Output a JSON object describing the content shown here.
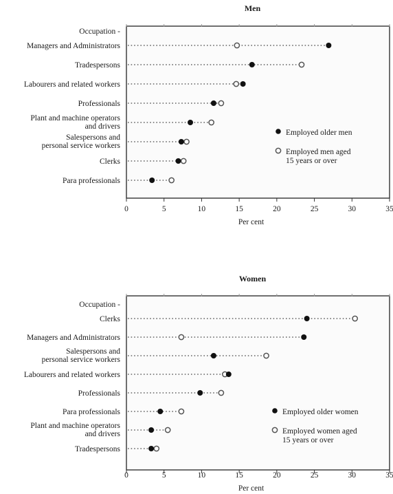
{
  "chart_data": [
    {
      "type": "scatter",
      "title": "Men",
      "xlabel": "Per cent",
      "xlim": [
        0,
        35
      ],
      "xticks": [
        0,
        5,
        10,
        15,
        20,
        25,
        30,
        35
      ],
      "header_label": "Occupation -",
      "categories": [
        "Managers and Administrators",
        "Tradespersons",
        "Labourers and related workers",
        "Professionals",
        "Plant and machine operators and drivers",
        "Salespersons and personal service workers",
        "Clerks",
        "Para professionals"
      ],
      "series": [
        {
          "name": "Employed older men",
          "marker": "filled",
          "values": [
            26.9,
            16.7,
            15.5,
            11.6,
            8.5,
            7.3,
            6.9,
            3.4
          ]
        },
        {
          "name": "Employed men aged 15 years or over",
          "marker": "open",
          "values": [
            14.7,
            23.3,
            14.6,
            12.6,
            11.3,
            8.0,
            7.6,
            6.0
          ]
        }
      ],
      "legend_position": "right"
    },
    {
      "type": "scatter",
      "title": "Women",
      "xlabel": "Per cent",
      "xlim": [
        0,
        35
      ],
      "xticks": [
        0,
        5,
        10,
        15,
        20,
        25,
        30,
        35
      ],
      "header_label": "Occupation -",
      "categories": [
        "Clerks",
        "Managers and Administrators",
        "Salespersons and personal service workers",
        "Labourers and related workers",
        "Professionals",
        "Para professionals",
        "Plant and machine operators and drivers",
        "Tradespersons"
      ],
      "series": [
        {
          "name": "Employed older women",
          "marker": "filled",
          "values": [
            24.0,
            23.6,
            11.6,
            13.6,
            9.8,
            4.5,
            3.3,
            3.3
          ]
        },
        {
          "name": "Employed women aged 15 years or over",
          "marker": "open",
          "values": [
            30.4,
            7.3,
            18.6,
            13.1,
            12.6,
            7.3,
            5.5,
            4.0
          ]
        }
      ],
      "legend_position": "right"
    }
  ],
  "category_display": {
    "Plant and machine operators and drivers": [
      "Plant and machine operators",
      "and drivers"
    ],
    "Salespersons and personal service workers": [
      "Salespersons and",
      "personal service workers"
    ]
  },
  "legend_display": {
    "Employed men aged 15 years or over": [
      "Employed men aged",
      "15 years or over"
    ],
    "Employed women aged 15 years or over": [
      "Employed women aged",
      "15 years or over"
    ]
  },
  "colors": {
    "filled_marker": "#111111",
    "open_marker_stroke": "#555555",
    "frame": "#333333"
  }
}
